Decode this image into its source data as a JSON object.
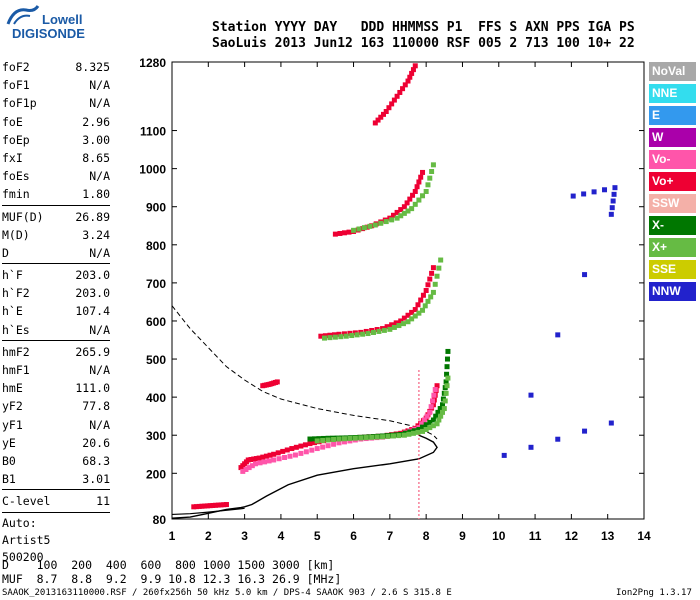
{
  "logo": {
    "line1": "Lowell",
    "line2": "DIGISONDE"
  },
  "header": {
    "row1": "Station YYYY DAY   DDD HHMMSS P1  FFS S AXN PPS IGA PS",
    "row2": "SaoLuis 2013 Jun12 163 110000 RSF 005 2 713 100 10+ 22"
  },
  "params": [
    {
      "k": "foF2",
      "v": "8.325"
    },
    {
      "k": "foF1",
      "v": "N/A"
    },
    {
      "k": "foF1p",
      "v": "N/A"
    },
    {
      "k": "foE",
      "v": "2.96"
    },
    {
      "k": "foEp",
      "v": "3.00"
    },
    {
      "k": "fxI",
      "v": "8.65"
    },
    {
      "k": "foEs",
      "v": "N/A"
    },
    {
      "k": "fmin",
      "v": "1.80"
    },
    {
      "sep": true
    },
    {
      "k": "MUF(D)",
      "v": "26.89"
    },
    {
      "k": "M(D)",
      "v": "3.24"
    },
    {
      "k": "D",
      "v": "N/A"
    },
    {
      "sep": true
    },
    {
      "k": "h`F",
      "v": "203.0"
    },
    {
      "k": "h`F2",
      "v": "203.0"
    },
    {
      "k": "h`E",
      "v": "107.4"
    },
    {
      "k": "h`Es",
      "v": "N/A"
    },
    {
      "sep": true
    },
    {
      "k": "hmF2",
      "v": "265.9"
    },
    {
      "k": "hmF1",
      "v": "N/A"
    },
    {
      "k": "hmE",
      "v": "111.0"
    },
    {
      "k": "yF2",
      "v": "77.8"
    },
    {
      "k": "yF1",
      "v": "N/A"
    },
    {
      "k": "yE",
      "v": "20.6"
    },
    {
      "k": "B0",
      "v": "68.3"
    },
    {
      "k": "B1",
      "v": "3.01"
    },
    {
      "sep": true
    },
    {
      "k": "C-level",
      "v": "11"
    },
    {
      "sep": true
    },
    {
      "plain": "Auto:"
    },
    {
      "plain": "Artist5"
    },
    {
      "plain": "500200"
    }
  ],
  "legend": [
    {
      "label": "NoVal",
      "color": "#a8a8a8"
    },
    {
      "label": "NNE",
      "color": "#33ddee"
    },
    {
      "label": "E",
      "color": "#3399ee"
    },
    {
      "label": "W",
      "color": "#aa00aa"
    },
    {
      "label": "Vo-",
      "color": "#ff55aa"
    },
    {
      "label": "Vo+",
      "color": "#ee0033"
    },
    {
      "label": "SSW",
      "color": "#f4b0a8"
    },
    {
      "label": "X-",
      "color": "#007700"
    },
    {
      "label": "X+",
      "color": "#66bb44"
    },
    {
      "label": "SSE",
      "color": "#cccc00"
    },
    {
      "label": "NNW",
      "color": "#2222cc"
    }
  ],
  "footer": {
    "row1": "D    100  200  400  600  800 1000 1500 3000 [km]",
    "row2": "MUF  8.7  8.8  9.2  9.9 10.8 12.3 16.3 26.9 [MHz]",
    "file": "SAAOK_2013163110000.RSF / 260fx256h 50 kHz 5.0 km / DPS-4 SAAOK 903 / 2.6 S 315.8 E",
    "version": "Ion2Png 1.3.17"
  },
  "chart_data": {
    "type": "scatter",
    "xlim": [
      1,
      14
    ],
    "ylim": [
      80,
      1280
    ],
    "xticks": [
      1,
      2,
      3,
      4,
      5,
      6,
      7,
      8,
      9,
      10,
      11,
      12,
      13,
      14
    ],
    "yticks": [
      80,
      200,
      300,
      400,
      500,
      600,
      700,
      800,
      900,
      1000,
      1100,
      1280
    ],
    "series": [
      {
        "name": "Vo+",
        "color": "#ee0033",
        "x": [
          2.9,
          3.1,
          3.4,
          3.8,
          4.3,
          4.8,
          5.3,
          5.8,
          6.3,
          6.8,
          7.3,
          7.7,
          8.0,
          8.2,
          8.3
        ],
        "y": [
          215,
          235,
          240,
          250,
          265,
          278,
          288,
          292,
          295,
          298,
          305,
          318,
          345,
          380,
          430
        ]
      },
      {
        "name": "Vo-",
        "color": "#ff55aa",
        "x": [
          2.95,
          3.3,
          3.8,
          4.4,
          5.0,
          5.6,
          6.2,
          6.8,
          7.3,
          7.8,
          8.1,
          8.25
        ],
        "y": [
          205,
          225,
          235,
          248,
          265,
          280,
          290,
          295,
          302,
          320,
          360,
          420
        ]
      },
      {
        "name": "X-",
        "color": "#007700",
        "x": [
          4.8,
          5.3,
          5.8,
          6.3,
          6.8,
          7.3,
          7.8,
          8.2,
          8.45,
          8.55,
          8.6
        ],
        "y": [
          290,
          292,
          293,
          295,
          298,
          302,
          315,
          340,
          380,
          440,
          520
        ]
      },
      {
        "name": "X+",
        "color": "#66bb44",
        "x": [
          5.0,
          5.6,
          6.2,
          6.8,
          7.4,
          7.9,
          8.3,
          8.5,
          8.6
        ],
        "y": [
          285,
          290,
          293,
          296,
          300,
          310,
          330,
          370,
          450
        ]
      },
      {
        "name": "Vo+",
        "color": "#ee0033",
        "x": [
          5.1,
          5.6,
          6.2,
          6.8,
          7.3,
          7.7,
          8.0,
          8.2
        ],
        "y": [
          560,
          565,
          570,
          580,
          600,
          630,
          680,
          740
        ]
      },
      {
        "name": "X+",
        "color": "#66bb44",
        "x": [
          5.2,
          5.8,
          6.4,
          7.0,
          7.5,
          7.9,
          8.2,
          8.4
        ],
        "y": [
          555,
          560,
          567,
          578,
          598,
          628,
          675,
          760
        ]
      },
      {
        "name": "Vo+",
        "color": "#ee0033",
        "x": [
          5.5,
          6.0,
          6.5,
          7.0,
          7.4,
          7.7,
          7.9
        ],
        "y": [
          828,
          835,
          850,
          870,
          900,
          940,
          990
        ]
      },
      {
        "name": "X+",
        "color": "#66bb44",
        "x": [
          6.0,
          6.6,
          7.2,
          7.6,
          8.0,
          8.2
        ],
        "y": [
          838,
          852,
          870,
          895,
          940,
          1010
        ]
      },
      {
        "name": "Vo+",
        "color": "#ee0033",
        "x": [
          6.6,
          6.9,
          7.2,
          7.5,
          7.7
        ],
        "y": [
          1120,
          1150,
          1190,
          1230,
          1270
        ]
      },
      {
        "name": "Vo+",
        "color": "#ee0033",
        "x": [
          1.6,
          1.9,
          2.2,
          2.5
        ],
        "y": [
          112,
          114,
          116,
          118
        ]
      },
      {
        "name": "Vo+",
        "color": "#ee0033",
        "x": [
          3.5,
          3.7,
          3.9
        ],
        "y": [
          430,
          434,
          440
        ]
      },
      {
        "name": "NNW",
        "color": "#2222cc",
        "x": [
          12.05,
          13.2,
          13.1,
          10.15,
          13.1
        ],
        "y": [
          928,
          950,
          880,
          247,
          332
        ]
      }
    ],
    "profile": {
      "x": [
        1.0,
        1.5,
        2.0,
        2.5,
        2.9,
        3.0,
        3.2,
        3.6,
        4.2,
        5.0,
        6.0,
        7.0,
        7.8,
        8.2,
        8.3,
        8.2,
        8.0,
        7.8
      ],
      "y": [
        82,
        85,
        95,
        105,
        110,
        112,
        118,
        140,
        170,
        195,
        212,
        225,
        238,
        255,
        268,
        282,
        292,
        300
      ]
    },
    "extrapolation": {
      "x": [
        1.0,
        1.5,
        2.0,
        2.5,
        3.0,
        3.5,
        4.0,
        5.0,
        6.0,
        7.0,
        7.8,
        8.2,
        8.3
      ],
      "y": [
        640,
        580,
        530,
        480,
        445,
        415,
        395,
        370,
        352,
        338,
        320,
        300,
        290
      ]
    },
    "e_trace": {
      "x": [
        1.0,
        1.5,
        2.0,
        2.5,
        2.9,
        3.0
      ],
      "y": [
        92,
        94,
        98,
        103,
        107,
        108
      ]
    }
  }
}
